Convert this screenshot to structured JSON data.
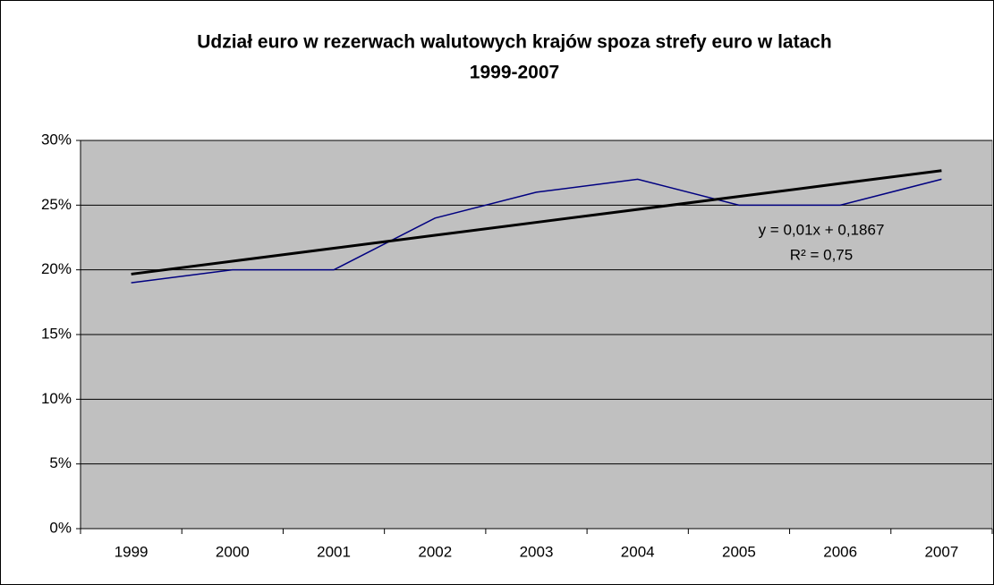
{
  "chart_data": {
    "type": "line",
    "title": [
      "Udział euro w rezerwach walutowych krajów spoza strefy euro w latach",
      "1999-2007"
    ],
    "categories": [
      "1999",
      "2000",
      "2001",
      "2002",
      "2003",
      "2004",
      "2005",
      "2006",
      "2007"
    ],
    "series": [
      {
        "color": "#000080",
        "values": [
          19,
          20,
          20,
          24,
          26,
          27,
          25,
          25,
          27
        ]
      }
    ],
    "trendline": {
      "color": "#000000",
      "values": [
        19.67,
        20.67,
        21.67,
        22.67,
        23.67,
        24.67,
        25.67,
        26.67,
        27.67
      ],
      "equation": "y = 0,01x + 0,1867",
      "r_squared": "R² = 0,75"
    },
    "ylim": [
      0,
      30
    ],
    "yticks": [
      {
        "value": 0,
        "label": "0%"
      },
      {
        "value": 5,
        "label": "5%"
      },
      {
        "value": 10,
        "label": "10%"
      },
      {
        "value": 15,
        "label": "15%"
      },
      {
        "value": 20,
        "label": "20%"
      },
      {
        "value": 25,
        "label": "25%"
      },
      {
        "value": 30,
        "label": "30%"
      }
    ],
    "grid": true
  }
}
